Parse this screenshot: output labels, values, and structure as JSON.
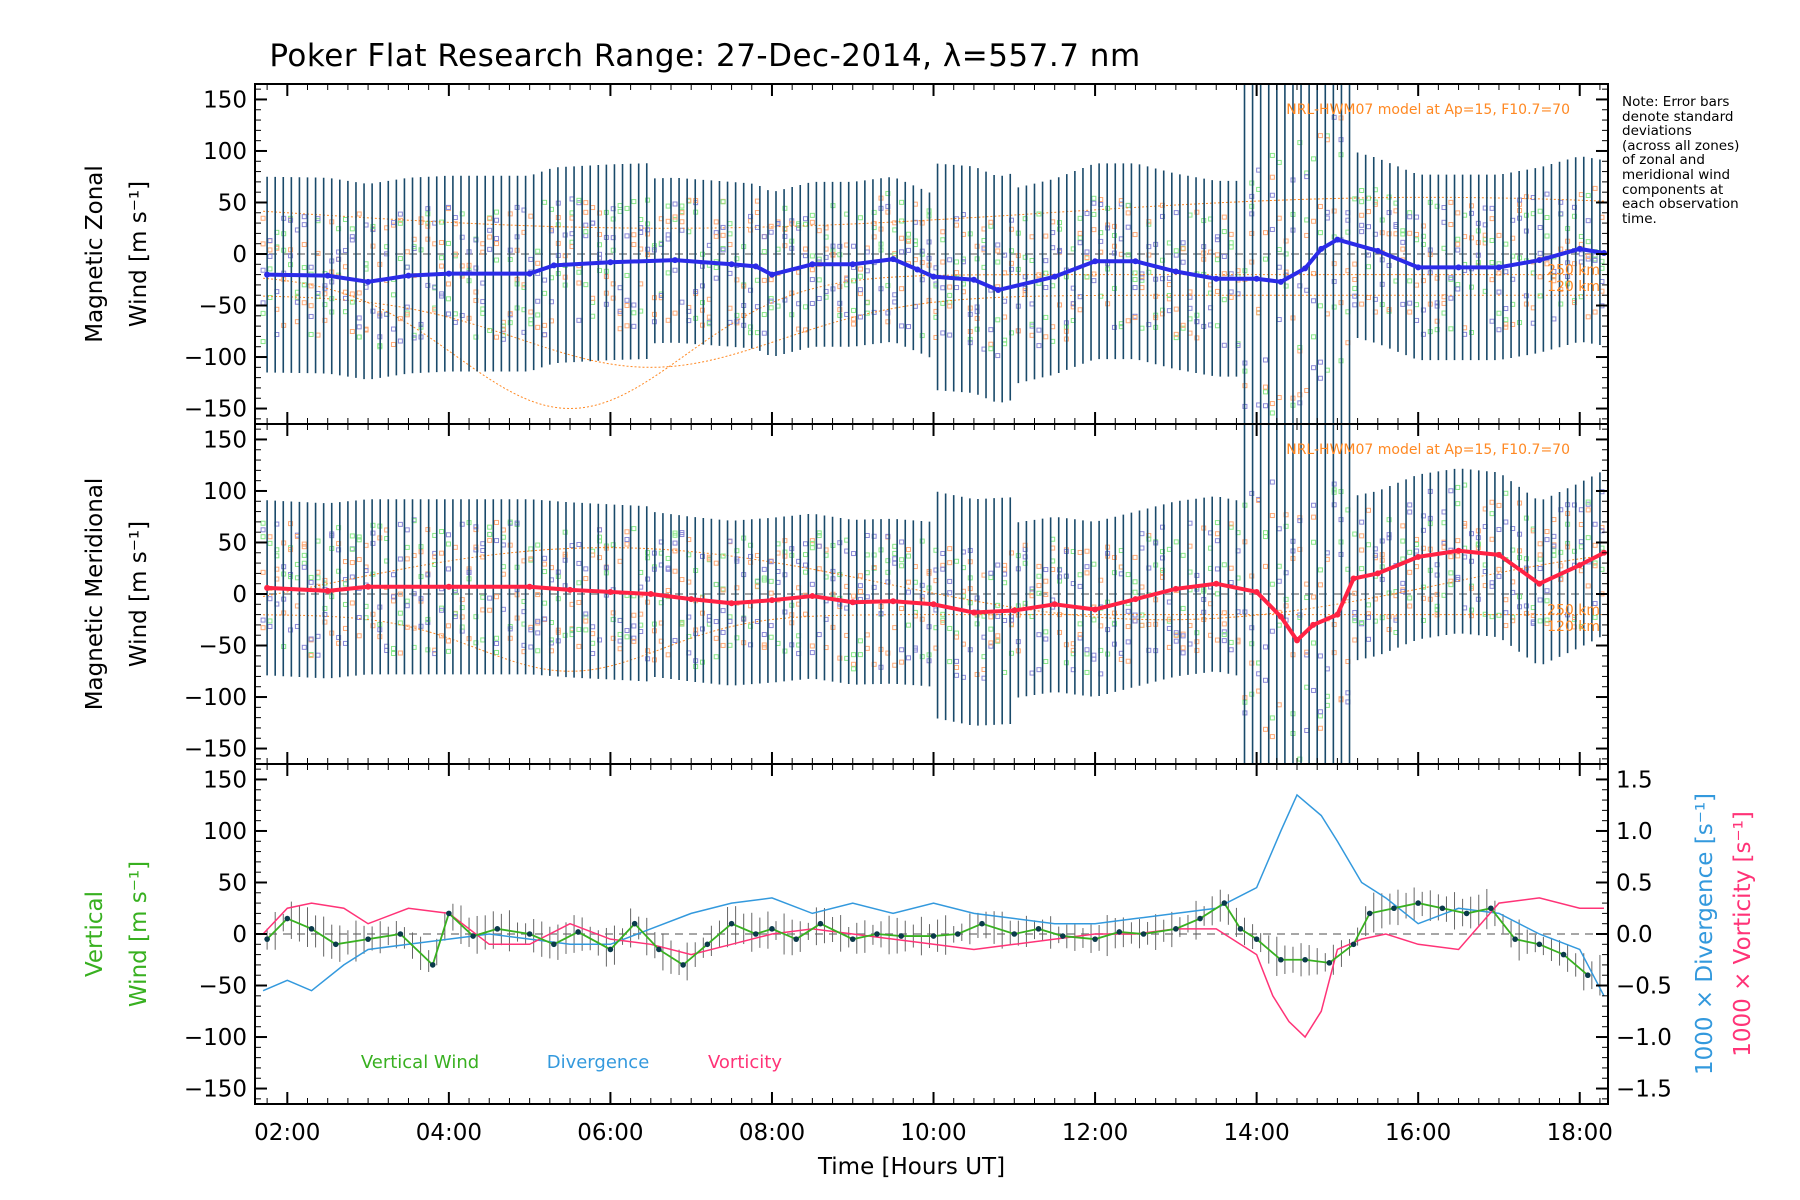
{
  "title": "Poker Flat Research Range: 27-Dec-2014, λ=557.7 nm",
  "note_lines": [
    "Note: Error bars",
    "denote standard",
    "deviations",
    "(across all zones)",
    "of zonal and",
    "meridional wind",
    "components at",
    "each observation",
    "time."
  ],
  "colors": {
    "zonal": "#2b2be8",
    "meridional": "#ff2244",
    "vertical": "#38b020",
    "divergence": "#3399dd",
    "vorticity": "#ff3377",
    "model": "#ff8822",
    "errbar": "#1a4a6a",
    "scatter_purple": "#8a88d8",
    "scatter_green": "#88e888",
    "scatter_orange": "#ffaa77"
  },
  "chart_data": [
    {
      "type": "line",
      "panel": "zonal",
      "ylabel_line1": "Magnetic Zonal",
      "ylabel_line2": "Wind [m s⁻¹]",
      "ylim": [
        -165,
        165
      ],
      "yticks": [
        "150",
        "100",
        "50",
        "0",
        "−50",
        "−100",
        "−150"
      ],
      "model_label": "NRL-HWM07 model at Ap=15, F10.7=70",
      "model_tag_1": "250 km",
      "model_tag_2": "120 km",
      "series": [
        {
          "x": [
            1.75,
            2.5,
            3.0,
            3.5,
            4.0,
            5.0,
            5.3,
            6.0,
            6.8,
            7.5,
            7.8,
            8.0,
            8.5,
            9.0,
            9.5,
            9.8,
            10.0,
            10.5,
            10.8,
            11.5,
            12.0,
            12.5,
            13.0,
            13.5,
            14.0,
            14.3,
            14.6,
            14.8,
            15.0,
            15.5,
            16.0,
            16.5,
            17.0,
            17.5,
            18.0,
            18.3
          ],
          "y": [
            -20,
            -21,
            -27,
            -21,
            -19,
            -19,
            -11,
            -8,
            -6,
            -10,
            -12,
            -20,
            -10,
            -10,
            -5,
            -15,
            -22,
            -25,
            -35,
            -22,
            -7,
            -7,
            -17,
            -24,
            -24,
            -27,
            -14,
            5,
            14,
            3,
            -13,
            -13,
            -13,
            -6,
            5,
            1
          ]
        }
      ]
    },
    {
      "type": "line",
      "panel": "meridional",
      "ylabel_line1": "Magnetic Meridional",
      "ylabel_line2": "Wind [m s⁻¹]",
      "ylim": [
        -165,
        165
      ],
      "yticks": [
        "150",
        "100",
        "50",
        "0",
        "−50",
        "−100",
        "−150"
      ],
      "model_label": "NRL-HWM07 model at Ap=15, F10.7=70",
      "model_tag_1": "250 km",
      "model_tag_2": "120 km",
      "series": [
        {
          "x": [
            1.75,
            2.5,
            3.0,
            4.0,
            5.0,
            5.5,
            6.0,
            6.5,
            7.0,
            7.5,
            8.0,
            8.5,
            9.0,
            9.5,
            10.0,
            10.5,
            11.0,
            11.5,
            12.0,
            12.5,
            13.0,
            13.5,
            14.0,
            14.3,
            14.5,
            14.7,
            15.0,
            15.2,
            15.5,
            16.0,
            16.5,
            17.0,
            17.5,
            18.0,
            18.3
          ],
          "y": [
            6,
            3,
            7,
            7,
            7,
            4,
            2,
            0,
            -5,
            -9,
            -6,
            -2,
            -8,
            -7,
            -10,
            -18,
            -16,
            -10,
            -15,
            -5,
            5,
            10,
            2,
            -22,
            -45,
            -30,
            -20,
            15,
            20,
            36,
            42,
            38,
            10,
            28,
            40
          ]
        }
      ]
    },
    {
      "type": "line",
      "panel": "vertical",
      "ylabel_line1": "Vertical",
      "ylabel_line2": "Wind [m s⁻¹]",
      "ylim": [
        -165,
        165
      ],
      "yticks": [
        "150",
        "100",
        "50",
        "0",
        "−50",
        "−100",
        "−150"
      ],
      "y2ticks": [
        "1.5",
        "1.0",
        "0.5",
        "0.0",
        "−0.5",
        "−1.0",
        "−1.5"
      ],
      "y2lim": [
        -1.65,
        1.65
      ],
      "y2label_div": "1000 × Divergence [s⁻¹]",
      "y2label_vort": "1000 × Vorticity [s⁻¹]",
      "legend": [
        "Vertical Wind",
        "Divergence",
        "Vorticity"
      ],
      "xlabel": "Time [Hours UT]",
      "xticks": [
        "02:00",
        "04:00",
        "06:00",
        "08:00",
        "10:00",
        "12:00",
        "14:00",
        "16:00",
        "18:00"
      ],
      "xlim": [
        1.6,
        18.35
      ],
      "series": [
        {
          "name": "Vertical Wind",
          "x": [
            1.75,
            2.0,
            2.3,
            2.6,
            3.0,
            3.4,
            3.8,
            4.0,
            4.3,
            4.6,
            5.0,
            5.3,
            5.6,
            6.0,
            6.3,
            6.6,
            6.9,
            7.2,
            7.5,
            7.8,
            8.0,
            8.3,
            8.6,
            9.0,
            9.3,
            9.6,
            10.0,
            10.3,
            10.6,
            11.0,
            11.3,
            11.6,
            12.0,
            12.3,
            12.6,
            13.0,
            13.3,
            13.6,
            13.8,
            14.0,
            14.3,
            14.6,
            14.9,
            15.2,
            15.4,
            15.7,
            16.0,
            16.3,
            16.6,
            16.9,
            17.2,
            17.5,
            17.8,
            18.1
          ],
          "y": [
            -5,
            15,
            5,
            -10,
            -5,
            0,
            -30,
            20,
            -2,
            5,
            0,
            -10,
            2,
            -15,
            10,
            -15,
            -30,
            -10,
            10,
            0,
            5,
            -5,
            10,
            -5,
            0,
            -2,
            -2,
            0,
            10,
            0,
            5,
            -2,
            -5,
            2,
            0,
            5,
            15,
            30,
            5,
            -5,
            -25,
            -25,
            -28,
            -10,
            20,
            25,
            30,
            25,
            20,
            25,
            -5,
            -10,
            -20,
            -40
          ]
        },
        {
          "name": "Divergence",
          "x": [
            1.7,
            2.0,
            2.3,
            2.7,
            3.0,
            3.5,
            4.0,
            4.5,
            5.0,
            5.5,
            6.0,
            6.5,
            7.0,
            7.5,
            8.0,
            8.5,
            9.0,
            9.5,
            10.0,
            10.5,
            11.0,
            11.5,
            12.0,
            12.5,
            13.0,
            13.5,
            14.0,
            14.3,
            14.5,
            14.8,
            15.0,
            15.3,
            15.6,
            16.0,
            16.5,
            17.0,
            17.5,
            18.0,
            18.3
          ],
          "y": [
            -0.55,
            -0.45,
            -0.55,
            -0.3,
            -0.15,
            -0.1,
            -0.05,
            0.0,
            -0.05,
            -0.1,
            -0.1,
            0.05,
            0.2,
            0.3,
            0.35,
            0.2,
            0.3,
            0.2,
            0.3,
            0.2,
            0.15,
            0.1,
            0.1,
            0.15,
            0.2,
            0.25,
            0.45,
            1.0,
            1.35,
            1.15,
            0.9,
            0.5,
            0.35,
            0.1,
            0.25,
            0.2,
            0.0,
            -0.15,
            -0.6
          ]
        },
        {
          "name": "Vorticity",
          "x": [
            1.7,
            2.0,
            2.3,
            2.7,
            3.0,
            3.5,
            4.0,
            4.5,
            5.0,
            5.5,
            6.0,
            6.5,
            7.0,
            7.5,
            8.0,
            8.5,
            9.0,
            9.5,
            10.0,
            10.5,
            11.0,
            11.5,
            12.0,
            12.5,
            13.0,
            13.5,
            14.0,
            14.2,
            14.4,
            14.6,
            14.8,
            15.0,
            15.3,
            15.6,
            16.0,
            16.5,
            17.0,
            17.5,
            18.0,
            18.3
          ],
          "y": [
            0.0,
            0.25,
            0.3,
            0.25,
            0.1,
            0.25,
            0.2,
            -0.1,
            -0.1,
            0.1,
            -0.05,
            -0.1,
            -0.2,
            -0.1,
            0.0,
            0.05,
            0.0,
            -0.05,
            -0.1,
            -0.15,
            -0.1,
            -0.05,
            0.0,
            0.0,
            0.05,
            0.05,
            -0.2,
            -0.6,
            -0.85,
            -1.0,
            -0.75,
            -0.15,
            -0.05,
            0.0,
            -0.1,
            -0.15,
            0.3,
            0.35,
            0.25,
            0.25
          ]
        }
      ]
    }
  ]
}
